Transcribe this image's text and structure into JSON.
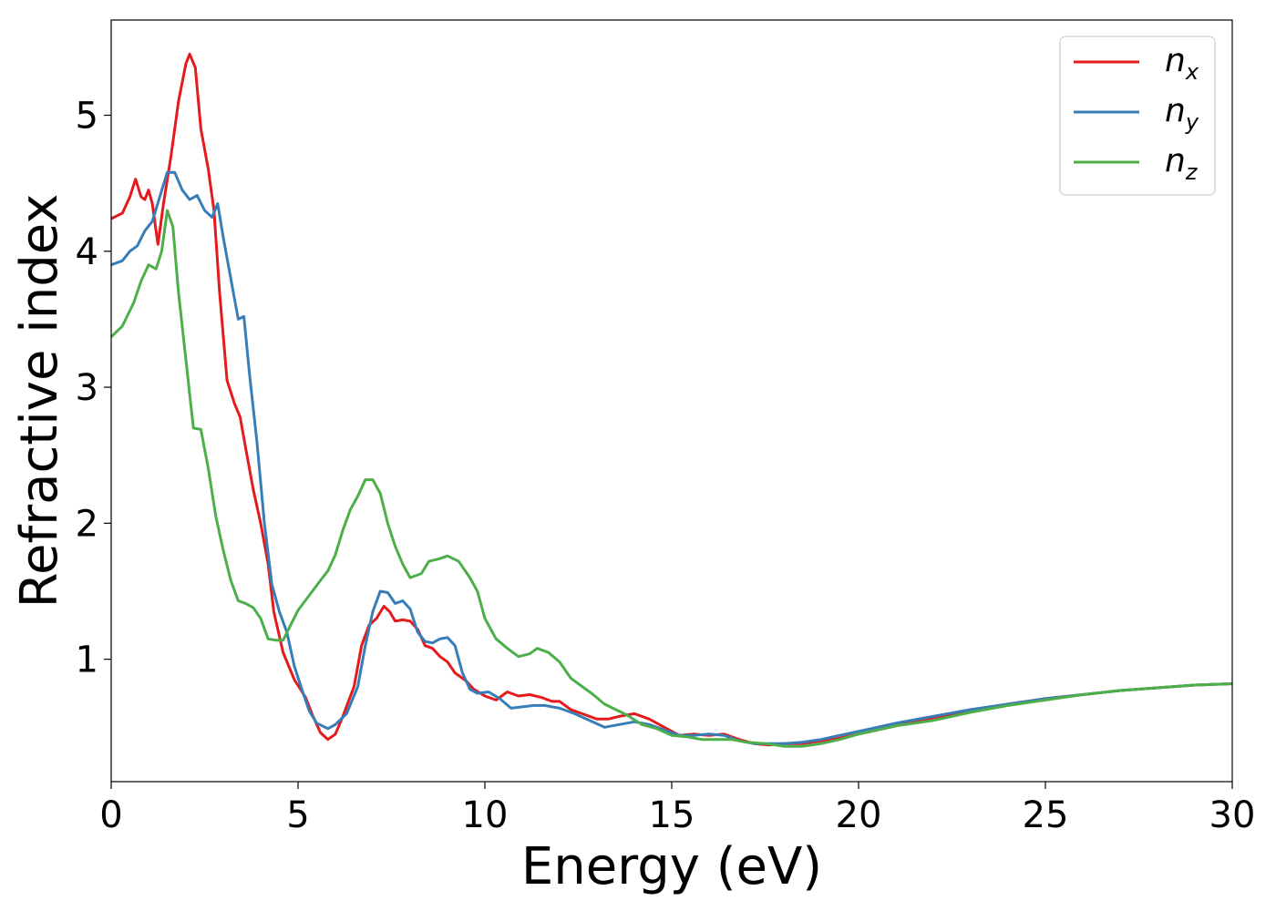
{
  "chart_data": {
    "type": "line",
    "title": "",
    "xlabel": "Energy (eV)",
    "ylabel": "Refractive index",
    "xlim": [
      0,
      30
    ],
    "ylim": [
      0.1,
      5.7
    ],
    "xticks": [
      0,
      5,
      10,
      15,
      20,
      25,
      30
    ],
    "yticks": [
      1,
      2,
      3,
      4,
      5
    ],
    "grid": false,
    "legend_position": "top-right",
    "series": [
      {
        "name": "n_x",
        "label_base": "n",
        "label_sub": "x",
        "color": "#e41a1c",
        "points": [
          [
            0,
            4.24
          ],
          [
            0.3,
            4.28
          ],
          [
            0.5,
            4.4
          ],
          [
            0.65,
            4.53
          ],
          [
            0.8,
            4.4
          ],
          [
            0.9,
            4.38
          ],
          [
            1.0,
            4.45
          ],
          [
            1.1,
            4.35
          ],
          [
            1.25,
            4.05
          ],
          [
            1.4,
            4.35
          ],
          [
            1.6,
            4.7
          ],
          [
            1.8,
            5.1
          ],
          [
            2.0,
            5.38
          ],
          [
            2.1,
            5.45
          ],
          [
            2.25,
            5.35
          ],
          [
            2.4,
            4.9
          ],
          [
            2.6,
            4.6
          ],
          [
            2.75,
            4.3
          ],
          [
            2.9,
            3.7
          ],
          [
            3.1,
            3.05
          ],
          [
            3.3,
            2.88
          ],
          [
            3.45,
            2.78
          ],
          [
            3.6,
            2.55
          ],
          [
            3.8,
            2.25
          ],
          [
            4.0,
            2.0
          ],
          [
            4.2,
            1.7
          ],
          [
            4.35,
            1.35
          ],
          [
            4.6,
            1.05
          ],
          [
            4.9,
            0.85
          ],
          [
            5.2,
            0.72
          ],
          [
            5.4,
            0.58
          ],
          [
            5.6,
            0.46
          ],
          [
            5.8,
            0.41
          ],
          [
            6.0,
            0.45
          ],
          [
            6.2,
            0.58
          ],
          [
            6.5,
            0.8
          ],
          [
            6.7,
            1.1
          ],
          [
            6.9,
            1.25
          ],
          [
            7.1,
            1.3
          ],
          [
            7.3,
            1.39
          ],
          [
            7.45,
            1.35
          ],
          [
            7.6,
            1.28
          ],
          [
            7.8,
            1.29
          ],
          [
            8.0,
            1.28
          ],
          [
            8.2,
            1.22
          ],
          [
            8.4,
            1.1
          ],
          [
            8.6,
            1.08
          ],
          [
            8.8,
            1.02
          ],
          [
            9.0,
            0.98
          ],
          [
            9.2,
            0.9
          ],
          [
            9.5,
            0.84
          ],
          [
            9.7,
            0.78
          ],
          [
            10.0,
            0.73
          ],
          [
            10.3,
            0.7
          ],
          [
            10.6,
            0.76
          ],
          [
            10.9,
            0.73
          ],
          [
            11.2,
            0.74
          ],
          [
            11.5,
            0.72
          ],
          [
            11.8,
            0.69
          ],
          [
            12.0,
            0.69
          ],
          [
            12.3,
            0.63
          ],
          [
            12.6,
            0.6
          ],
          [
            13.0,
            0.56
          ],
          [
            13.3,
            0.56
          ],
          [
            13.6,
            0.58
          ],
          [
            14.0,
            0.6
          ],
          [
            14.4,
            0.56
          ],
          [
            14.8,
            0.5
          ],
          [
            15.2,
            0.44
          ],
          [
            15.6,
            0.45
          ],
          [
            16.0,
            0.44
          ],
          [
            16.4,
            0.45
          ],
          [
            16.8,
            0.41
          ],
          [
            17.2,
            0.38
          ],
          [
            17.6,
            0.37
          ],
          [
            18.0,
            0.38
          ],
          [
            18.5,
            0.38
          ],
          [
            19.0,
            0.4
          ],
          [
            19.5,
            0.42
          ],
          [
            20.0,
            0.45
          ],
          [
            21.0,
            0.51
          ],
          [
            22.0,
            0.57
          ],
          [
            23.0,
            0.62
          ],
          [
            24.0,
            0.67
          ],
          [
            25.0,
            0.71
          ],
          [
            26.0,
            0.74
          ],
          [
            27.0,
            0.77
          ],
          [
            28.0,
            0.79
          ],
          [
            29.0,
            0.81
          ],
          [
            30.0,
            0.82
          ]
        ]
      },
      {
        "name": "n_y",
        "label_base": "n",
        "label_sub": "y",
        "color": "#377eb8",
        "points": [
          [
            0,
            3.9
          ],
          [
            0.3,
            3.93
          ],
          [
            0.5,
            4.0
          ],
          [
            0.7,
            4.04
          ],
          [
            0.9,
            4.15
          ],
          [
            1.1,
            4.22
          ],
          [
            1.3,
            4.4
          ],
          [
            1.5,
            4.58
          ],
          [
            1.7,
            4.58
          ],
          [
            1.9,
            4.45
          ],
          [
            2.1,
            4.38
          ],
          [
            2.3,
            4.41
          ],
          [
            2.5,
            4.3
          ],
          [
            2.7,
            4.25
          ],
          [
            2.85,
            4.35
          ],
          [
            3.0,
            4.1
          ],
          [
            3.2,
            3.8
          ],
          [
            3.4,
            3.5
          ],
          [
            3.55,
            3.52
          ],
          [
            3.7,
            3.1
          ],
          [
            3.9,
            2.6
          ],
          [
            4.1,
            2.0
          ],
          [
            4.3,
            1.55
          ],
          [
            4.5,
            1.35
          ],
          [
            4.7,
            1.2
          ],
          [
            4.9,
            0.95
          ],
          [
            5.1,
            0.78
          ],
          [
            5.3,
            0.62
          ],
          [
            5.5,
            0.53
          ],
          [
            5.8,
            0.49
          ],
          [
            6.0,
            0.52
          ],
          [
            6.3,
            0.6
          ],
          [
            6.6,
            0.8
          ],
          [
            6.8,
            1.1
          ],
          [
            7.0,
            1.35
          ],
          [
            7.2,
            1.5
          ],
          [
            7.4,
            1.49
          ],
          [
            7.6,
            1.41
          ],
          [
            7.8,
            1.43
          ],
          [
            8.0,
            1.37
          ],
          [
            8.2,
            1.2
          ],
          [
            8.4,
            1.13
          ],
          [
            8.6,
            1.12
          ],
          [
            8.8,
            1.15
          ],
          [
            9.0,
            1.16
          ],
          [
            9.2,
            1.1
          ],
          [
            9.4,
            0.9
          ],
          [
            9.6,
            0.78
          ],
          [
            9.8,
            0.75
          ],
          [
            10.1,
            0.76
          ],
          [
            10.4,
            0.71
          ],
          [
            10.7,
            0.64
          ],
          [
            11.0,
            0.65
          ],
          [
            11.3,
            0.66
          ],
          [
            11.6,
            0.66
          ],
          [
            12.0,
            0.64
          ],
          [
            12.4,
            0.6
          ],
          [
            12.8,
            0.55
          ],
          [
            13.2,
            0.5
          ],
          [
            13.6,
            0.52
          ],
          [
            14.0,
            0.54
          ],
          [
            14.4,
            0.52
          ],
          [
            14.8,
            0.48
          ],
          [
            15.2,
            0.44
          ],
          [
            15.6,
            0.44
          ],
          [
            16.0,
            0.45
          ],
          [
            16.4,
            0.44
          ],
          [
            16.8,
            0.4
          ],
          [
            17.2,
            0.38
          ],
          [
            17.6,
            0.38
          ],
          [
            18.0,
            0.38
          ],
          [
            18.5,
            0.39
          ],
          [
            19.0,
            0.41
          ],
          [
            19.5,
            0.44
          ],
          [
            20.0,
            0.47
          ],
          [
            21.0,
            0.53
          ],
          [
            22.0,
            0.58
          ],
          [
            23.0,
            0.63
          ],
          [
            24.0,
            0.67
          ],
          [
            25.0,
            0.71
          ],
          [
            26.0,
            0.74
          ],
          [
            27.0,
            0.77
          ],
          [
            28.0,
            0.79
          ],
          [
            29.0,
            0.81
          ],
          [
            30.0,
            0.82
          ]
        ]
      },
      {
        "name": "n_z",
        "label_base": "n",
        "label_sub": "z",
        "color": "#4daf4a",
        "points": [
          [
            0,
            3.37
          ],
          [
            0.3,
            3.45
          ],
          [
            0.6,
            3.62
          ],
          [
            0.8,
            3.78
          ],
          [
            1.0,
            3.9
          ],
          [
            1.2,
            3.87
          ],
          [
            1.35,
            4.0
          ],
          [
            1.5,
            4.3
          ],
          [
            1.65,
            4.18
          ],
          [
            1.8,
            3.7
          ],
          [
            2.0,
            3.2
          ],
          [
            2.2,
            2.7
          ],
          [
            2.4,
            2.69
          ],
          [
            2.6,
            2.4
          ],
          [
            2.8,
            2.05
          ],
          [
            3.0,
            1.8
          ],
          [
            3.2,
            1.58
          ],
          [
            3.4,
            1.43
          ],
          [
            3.6,
            1.41
          ],
          [
            3.8,
            1.38
          ],
          [
            4.0,
            1.3
          ],
          [
            4.2,
            1.15
          ],
          [
            4.4,
            1.14
          ],
          [
            4.6,
            1.14
          ],
          [
            4.8,
            1.25
          ],
          [
            5.0,
            1.36
          ],
          [
            5.3,
            1.47
          ],
          [
            5.6,
            1.58
          ],
          [
            5.8,
            1.65
          ],
          [
            6.0,
            1.77
          ],
          [
            6.2,
            1.95
          ],
          [
            6.4,
            2.1
          ],
          [
            6.6,
            2.2
          ],
          [
            6.8,
            2.32
          ],
          [
            7.0,
            2.32
          ],
          [
            7.2,
            2.22
          ],
          [
            7.4,
            2.0
          ],
          [
            7.6,
            1.83
          ],
          [
            7.8,
            1.7
          ],
          [
            8.0,
            1.6
          ],
          [
            8.3,
            1.63
          ],
          [
            8.5,
            1.72
          ],
          [
            8.8,
            1.74
          ],
          [
            9.0,
            1.76
          ],
          [
            9.3,
            1.72
          ],
          [
            9.6,
            1.6
          ],
          [
            9.8,
            1.5
          ],
          [
            10.0,
            1.3
          ],
          [
            10.3,
            1.15
          ],
          [
            10.6,
            1.08
          ],
          [
            10.9,
            1.02
          ],
          [
            11.2,
            1.04
          ],
          [
            11.4,
            1.08
          ],
          [
            11.7,
            1.05
          ],
          [
            12.0,
            0.98
          ],
          [
            12.3,
            0.86
          ],
          [
            12.6,
            0.8
          ],
          [
            12.9,
            0.74
          ],
          [
            13.2,
            0.67
          ],
          [
            13.5,
            0.63
          ],
          [
            13.8,
            0.59
          ],
          [
            14.2,
            0.52
          ],
          [
            14.6,
            0.49
          ],
          [
            15.0,
            0.44
          ],
          [
            15.4,
            0.43
          ],
          [
            15.8,
            0.41
          ],
          [
            16.2,
            0.41
          ],
          [
            16.6,
            0.41
          ],
          [
            17.0,
            0.39
          ],
          [
            17.5,
            0.38
          ],
          [
            18.0,
            0.36
          ],
          [
            18.5,
            0.36
          ],
          [
            19.0,
            0.38
          ],
          [
            19.5,
            0.41
          ],
          [
            20.0,
            0.45
          ],
          [
            21.0,
            0.51
          ],
          [
            22.0,
            0.55
          ],
          [
            23.0,
            0.61
          ],
          [
            24.0,
            0.66
          ],
          [
            25.0,
            0.7
          ],
          [
            26.0,
            0.74
          ],
          [
            27.0,
            0.77
          ],
          [
            28.0,
            0.79
          ],
          [
            29.0,
            0.81
          ],
          [
            30.0,
            0.82
          ]
        ]
      }
    ]
  }
}
